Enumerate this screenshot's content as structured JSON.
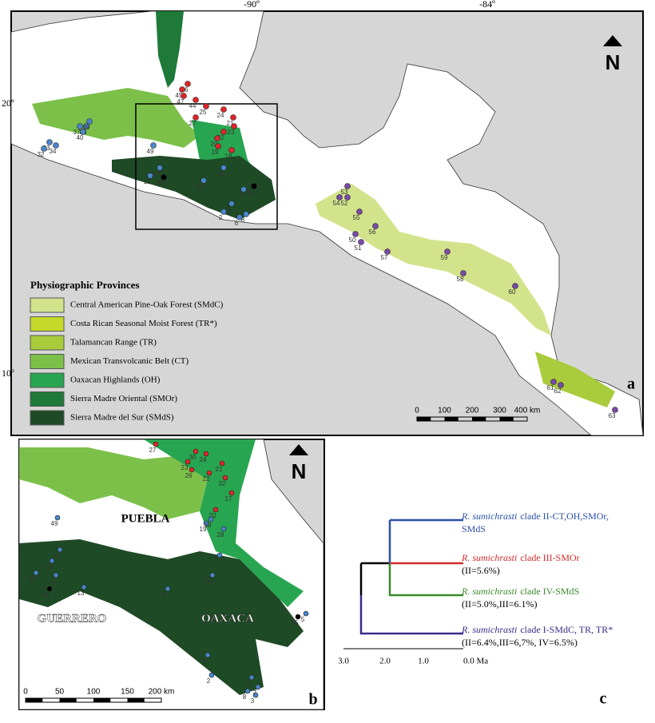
{
  "map_a": {
    "lon_labels": [
      "-90º",
      "-84º"
    ],
    "lat_labels": [
      "20º",
      "10º"
    ],
    "north": "N",
    "panel": "a",
    "legend_title": "Physiographic Provinces",
    "legend": [
      "Central American Pine-Oak Forest (SMdC)",
      "Costa Rican Seasonal Moist Forest (TR*)",
      "Talamancan Range (TR)",
      "Mexican Transvolcanic Belt (CT)",
      "Oaxacan Highlands (OH)",
      "Sierra Madre Oriental (SMOr)",
      "Sierra Madre del Sur (SMdS)"
    ],
    "scale": [
      "0",
      "100",
      "200",
      "300",
      "400 km"
    ],
    "points": [
      "46",
      "45",
      "47",
      "44",
      "25",
      "24",
      "27",
      "21",
      "23",
      "22",
      "20",
      "19",
      "18",
      "37",
      "38",
      "39",
      "40",
      "33",
      "34",
      "32",
      "49",
      "14",
      "12",
      "64",
      "13",
      "10",
      "1",
      "9",
      "2",
      "6",
      "8",
      "65",
      "53",
      "54",
      "52",
      "55",
      "56",
      "50",
      "51",
      "57",
      "59",
      "58",
      "60",
      "61",
      "62",
      "63"
    ]
  },
  "map_b": {
    "north": "N",
    "panel": "b",
    "places": [
      "PUEBLA",
      "GUERRERO",
      "OAXACA"
    ],
    "scale": [
      "0",
      "50",
      "100",
      "150",
      "200 km"
    ],
    "points": [
      "27",
      "30",
      "24",
      "21",
      "23",
      "26",
      "22",
      "32",
      "17",
      "20",
      "19",
      "18",
      "28",
      "1",
      "10",
      "49",
      "14",
      "12",
      "15",
      "11",
      "64",
      "13",
      "6",
      "65",
      "5",
      "9",
      "2",
      "4",
      "8",
      "3",
      "7"
    ]
  },
  "tree": {
    "panel": "c",
    "clades": [
      {
        "species": "R. sumichrasti",
        "clade": "clade II-CT,OH,SMOr,",
        "line2": "SMdS"
      },
      {
        "species": "R. sumichrasti",
        "clade": "clade III-SMOr",
        "line2": "(II=5.6%)"
      },
      {
        "species": "R. sumichrasti",
        "clade": "clade IV-SMdS",
        "line2": "(II=5.0%,III=6.1%)"
      },
      {
        "species": "R. sumichrasti",
        "clade": "clade I-SMdC, TR, TR*",
        "line2": "(II=6.4%,III=6,7%, IV=6.5%)"
      }
    ],
    "axis": [
      "3.0",
      "2.0",
      "1.0",
      "0.0 Ma"
    ]
  }
}
